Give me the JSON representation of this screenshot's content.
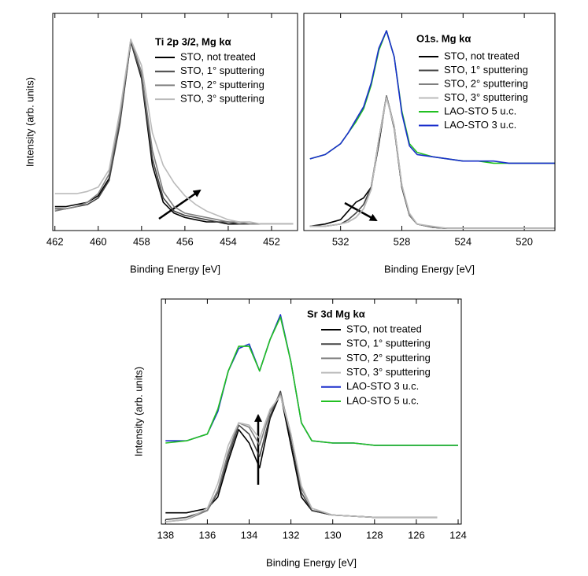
{
  "chart_data": [
    {
      "type": "line",
      "title": "Ti 2p 3/2, Mg kα",
      "xlabel": "Binding Energy [eV]",
      "ylabel": "Intensity (arb. units)",
      "x": [
        462,
        461.5,
        461,
        460.5,
        460,
        459.5,
        459,
        458.5,
        458,
        457.5,
        457,
        456.5,
        456,
        455.5,
        455,
        454.5,
        454,
        453.5,
        453,
        452.5,
        452,
        451.5,
        451
      ],
      "xlim": [
        462.1,
        450.8
      ],
      "xticks": [
        462,
        460,
        458,
        456,
        454,
        452
      ],
      "ylim": [
        0,
        100
      ],
      "legend": "upper right",
      "series": [
        {
          "name": "STO, not treated",
          "color": "#000000",
          "values": [
            11,
            11,
            12,
            13,
            16,
            24,
            50,
            87,
            70,
            30,
            13,
            8,
            6,
            5,
            4,
            4,
            3,
            3,
            3,
            3,
            3,
            3,
            3
          ]
        },
        {
          "name": "STO, 1° sputtering",
          "color": "#444444",
          "values": [
            10,
            10,
            11,
            12,
            15,
            23,
            49,
            87,
            71,
            33,
            15,
            9,
            7,
            6,
            5,
            4,
            4,
            3,
            3,
            3,
            3,
            3,
            3
          ]
        },
        {
          "name": "STO, 2° sputtering",
          "color": "#808080",
          "values": [
            9,
            10,
            11,
            13,
            17,
            26,
            52,
            88,
            73,
            37,
            18,
            11,
            8,
            7,
            6,
            5,
            4,
            4,
            3,
            3,
            3,
            3,
            3
          ]
        },
        {
          "name": "STO, 3° sputtering",
          "color": "#bbbbbb",
          "values": [
            17,
            17,
            17,
            18,
            20,
            28,
            55,
            88,
            76,
            45,
            30,
            22,
            16,
            12,
            9,
            7,
            5,
            4,
            4,
            3,
            3,
            3,
            3
          ]
        }
      ]
    },
    {
      "type": "line",
      "title": "O1s. Mg kα",
      "xlabel": "Binding Energy [eV]",
      "x": [
        534,
        533,
        532,
        531.5,
        531,
        530.5,
        530,
        529.5,
        529,
        528.5,
        528,
        527.5,
        527,
        526,
        525,
        524,
        523,
        522,
        521,
        520,
        519,
        518
      ],
      "xlim": [
        534.4,
        518
      ],
      "xticks": [
        532,
        528,
        524,
        520
      ],
      "ylim": [
        0,
        100
      ],
      "legend": "upper right",
      "series": [
        {
          "name": "STO, not treated",
          "color": "#000000",
          "values": [
            2,
            3,
            5,
            9,
            13,
            15,
            20,
            40,
            62,
            48,
            20,
            7,
            3,
            1.5,
            1,
            1,
            1,
            1,
            1,
            1,
            1,
            1
          ]
        },
        {
          "name": "STO, 1° sputtering",
          "color": "#444444",
          "values": [
            2,
            2,
            3,
            5,
            8,
            12,
            20,
            42,
            62,
            47,
            20,
            7,
            3,
            1.5,
            1,
            1,
            1,
            1,
            1,
            1,
            1,
            1
          ]
        },
        {
          "name": "STO, 2° sputtering",
          "color": "#808080",
          "values": [
            2,
            2,
            3,
            4,
            6,
            10,
            19,
            42,
            62,
            48,
            21,
            7,
            3,
            1.5,
            1,
            1,
            1,
            1,
            1,
            1,
            1,
            1
          ]
        },
        {
          "name": "STO, 3° sputtering",
          "color": "#bbbbbb",
          "values": [
            2,
            2,
            3,
            4,
            6,
            10,
            19,
            42,
            61,
            48,
            21,
            8,
            3,
            2,
            1,
            1,
            1,
            1,
            1,
            1,
            1,
            1
          ]
        },
        {
          "name": "LAO-STO 5 u.c.",
          "color": "#22c022",
          "values": [
            33,
            35,
            40,
            45,
            50,
            56,
            67,
            83,
            92,
            80,
            55,
            40,
            36,
            34,
            33,
            32,
            32,
            31,
            31,
            31,
            31,
            31
          ]
        },
        {
          "name": "LAO-STO 3 u.c.",
          "color": "#1a2ecc",
          "values": [
            33,
            35,
            40,
            45,
            51,
            57,
            68,
            84,
            92,
            80,
            54,
            39,
            35,
            34,
            33,
            32,
            32,
            32,
            31,
            31,
            31,
            31
          ]
        }
      ]
    },
    {
      "type": "line",
      "title": "Sr 3d Mg kα",
      "xlabel": "Binding Energy [eV]",
      "ylabel": "Intensity (arb. units)",
      "x": [
        138,
        137,
        136,
        135.5,
        135,
        134.5,
        134,
        133.5,
        133,
        132.5,
        132,
        131.5,
        131,
        130,
        129,
        128,
        127,
        126,
        125,
        124
      ],
      "xlim": [
        138.2,
        123.85
      ],
      "xticks": [
        138,
        136,
        134,
        132,
        130,
        128,
        126,
        124
      ],
      "ylim": [
        0,
        100
      ],
      "legend": "upper right",
      "series": [
        {
          "name": "STO, not treated",
          "color": "#000000",
          "values": [
            5,
            5,
            7,
            12,
            28,
            42,
            36,
            25,
            47,
            58,
            35,
            12,
            6,
            4,
            3.5,
            3,
            3,
            3,
            3,
            null
          ]
        },
        {
          "name": "STO, 1° sputtering",
          "color": "#444444",
          "values": [
            2,
            3,
            6,
            14,
            30,
            44,
            40,
            30,
            48,
            59,
            38,
            14,
            6,
            4,
            3.5,
            3,
            3,
            3,
            3,
            null
          ]
        },
        {
          "name": "STO, 2° sputtering",
          "color": "#808080",
          "values": [
            1,
            2,
            6,
            15,
            32,
            45,
            43,
            35,
            50,
            58,
            40,
            16,
            7,
            4,
            3.5,
            3,
            3,
            3,
            3,
            null
          ]
        },
        {
          "name": "STO, 3° sputtering",
          "color": "#bbbbbb",
          "values": [
            1,
            2,
            7,
            18,
            35,
            45,
            44,
            38,
            51,
            57,
            40,
            17,
            7,
            4,
            3.5,
            3,
            3,
            3,
            3,
            null
          ]
        },
        {
          "name": "LAO-STO 3 u.c.",
          "color": "#1a2ecc",
          "values": [
            37,
            37,
            40,
            50,
            68,
            78,
            80,
            68,
            82,
            93,
            72,
            45,
            37,
            36,
            36,
            35,
            35,
            35,
            35,
            35
          ]
        },
        {
          "name": "LAO-STO 5 u.c.",
          "color": "#22c022",
          "values": [
            36,
            37,
            40,
            51,
            68,
            79,
            79,
            68,
            82,
            92,
            72,
            45,
            37,
            36,
            36,
            35,
            35,
            35,
            35,
            35
          ]
        }
      ]
    }
  ]
}
